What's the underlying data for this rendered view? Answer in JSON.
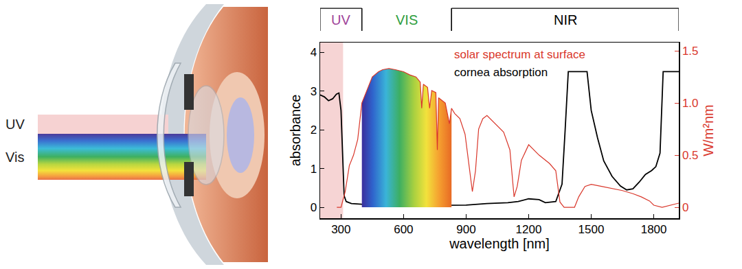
{
  "chart_data": {
    "type": "line",
    "x_label": "wavelength [nm]",
    "y_label": "absorbance",
    "y2_label": "W/m²nm",
    "xlim": [
      200,
      1920
    ],
    "xticks": [
      300,
      600,
      900,
      1200,
      1500,
      1800
    ],
    "ylim": [
      -0.28,
      4.25
    ],
    "yticks": [
      0,
      1,
      2,
      3,
      4
    ],
    "y2lim": [
      -0.105,
      1.58
    ],
    "y2ticks": [
      0,
      0.5,
      {
        "value": 1,
        "label": "1.0"
      },
      1.5
    ],
    "grid": false,
    "legend": "top",
    "series": [
      {
        "name": "solar spectrum at surface",
        "color": "#d9372b",
        "axis": "y2",
        "x": [
          280,
          300,
          320,
          340,
          360,
          380,
          400,
          420,
          450,
          480,
          500,
          530,
          560,
          600,
          630,
          660,
          680,
          687,
          695,
          715,
          725,
          735,
          755,
          762,
          768,
          800,
          820,
          830,
          845,
          870,
          895,
          930,
          945,
          960,
          980,
          1000,
          1040,
          1080,
          1110,
          1130,
          1145,
          1165,
          1200,
          1250,
          1300,
          1330,
          1350,
          1370,
          1420,
          1440,
          1470,
          1500,
          1550,
          1600,
          1650,
          1700,
          1740,
          1780,
          1800,
          1840,
          1880,
          1920
        ],
        "values": [
          0,
          0,
          0.15,
          0.4,
          0.5,
          0.65,
          1.0,
          1.1,
          1.25,
          1.3,
          1.32,
          1.33,
          1.32,
          1.3,
          1.27,
          1.25,
          1.2,
          0.95,
          1.18,
          1.15,
          0.95,
          1.12,
          1.1,
          0.55,
          1.05,
          1.0,
          0.8,
          0.95,
          0.9,
          0.85,
          0.7,
          0.15,
          0.35,
          0.75,
          0.85,
          0.88,
          0.8,
          0.72,
          0.55,
          0.1,
          0.2,
          0.45,
          0.6,
          0.5,
          0.42,
          0.35,
          0.05,
          0.0,
          0.0,
          0.1,
          0.2,
          0.22,
          0.2,
          0.18,
          0.16,
          0.13,
          0.1,
          0.06,
          0.02,
          0.0,
          0.02,
          0.04
        ]
      },
      {
        "name": "cornea absorption",
        "color": "#000000",
        "x": [
          200,
          220,
          240,
          260,
          278,
          290,
          300,
          308,
          315,
          325,
          350,
          400,
          500,
          600,
          700,
          800,
          900,
          1000,
          1100,
          1150,
          1200,
          1250,
          1280,
          1330,
          1360,
          1375,
          1390,
          1480,
          1500,
          1530,
          1560,
          1600,
          1640,
          1670,
          1700,
          1730,
          1760,
          1790,
          1810,
          1830,
          1845,
          1920
        ],
        "values": [
          2.9,
          2.85,
          2.75,
          2.8,
          2.92,
          2.95,
          2.5,
          1.2,
          0.3,
          0.15,
          0.1,
          0.08,
          0.06,
          0.05,
          0.05,
          0.05,
          0.06,
          0.1,
          0.12,
          0.15,
          0.22,
          0.2,
          0.12,
          0.15,
          0.6,
          2.0,
          3.5,
          3.5,
          2.5,
          1.8,
          1.2,
          0.8,
          0.55,
          0.45,
          0.48,
          0.65,
          0.85,
          0.95,
          1.05,
          1.4,
          3.5,
          3.5
        ]
      }
    ],
    "bands": [
      {
        "label": "UV",
        "start": 200,
        "end": 400,
        "color": "#a0449a"
      },
      {
        "label": "VIS",
        "start": 400,
        "end": 830,
        "color": "#2e9e3e"
      },
      {
        "label": "NIR",
        "start": 830,
        "end": 1920,
        "color": "#000000"
      }
    ],
    "uv_shade": {
      "start": 200,
      "end": 310,
      "color": "#f6d4d4"
    },
    "visible_fill": {
      "start": 400,
      "end": 830
    }
  },
  "eye_diagram": {
    "beam_labels": [
      "UV",
      "Vis"
    ]
  }
}
